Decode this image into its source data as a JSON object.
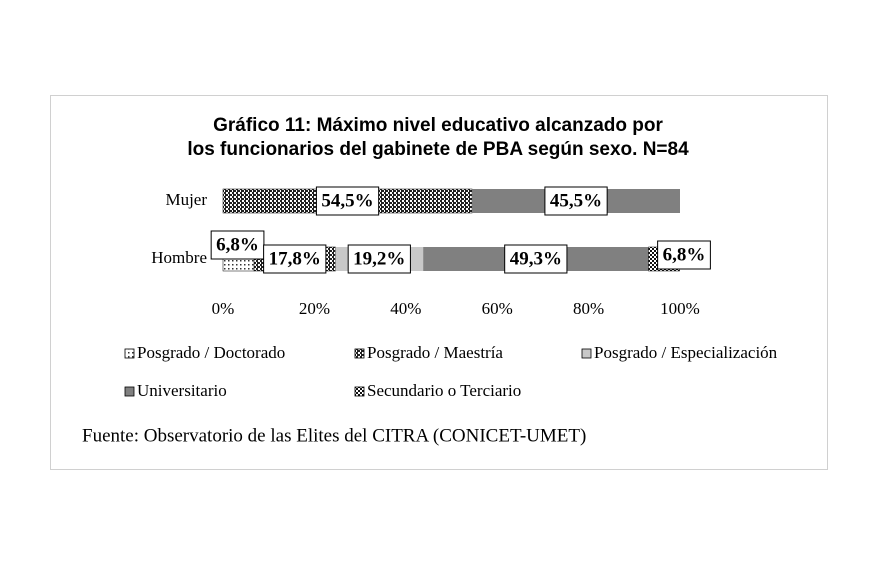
{
  "chart_data": {
    "type": "stacked-bar-horizontal",
    "title": "Gráfico 11: Máximo nivel educativo alcanzado por los funcionarios del gabinete de PBA según sexo. N=84",
    "categories": [
      "Mujer",
      "Hombre"
    ],
    "series": [
      {
        "name": "Posgrado / Doctorado",
        "color": "#333333",
        "pattern": "dots",
        "values": [
          0,
          6.8
        ],
        "value_labels": [
          null,
          "6,8%"
        ]
      },
      {
        "name": "Posgrado / Maestría",
        "color": "#222222",
        "pattern": "crosshatch",
        "values": [
          54.5,
          17.8
        ],
        "value_labels": [
          "54,5%",
          "17,8%"
        ]
      },
      {
        "name": "Posgrado / Especialización",
        "color": "#c8c8c8",
        "pattern": "solid",
        "values": [
          0,
          19.2
        ],
        "value_labels": [
          null,
          "19,2%"
        ]
      },
      {
        "name": "Universitario",
        "color": "#808080",
        "pattern": "solid",
        "values": [
          45.5,
          49.3
        ],
        "value_labels": [
          "45,5%",
          "49,3%"
        ]
      },
      {
        "name": "Secundario o Terciario",
        "color": "#111111",
        "pattern": "checker",
        "values": [
          0,
          6.8
        ],
        "value_labels": [
          null,
          "6,8%"
        ]
      }
    ],
    "xlim": [
      0,
      100
    ],
    "xticks": [
      {
        "value": 0,
        "label": "0%"
      },
      {
        "value": 20,
        "label": "20%"
      },
      {
        "value": 40,
        "label": "40%"
      },
      {
        "value": 60,
        "label": "60%"
      },
      {
        "value": 80,
        "label": "80%"
      },
      {
        "value": 100,
        "label": "100%"
      }
    ],
    "legend": "bottom",
    "source": "Fuente: Observatorio de las Elites del CITRA (CONICET-UMET)"
  }
}
